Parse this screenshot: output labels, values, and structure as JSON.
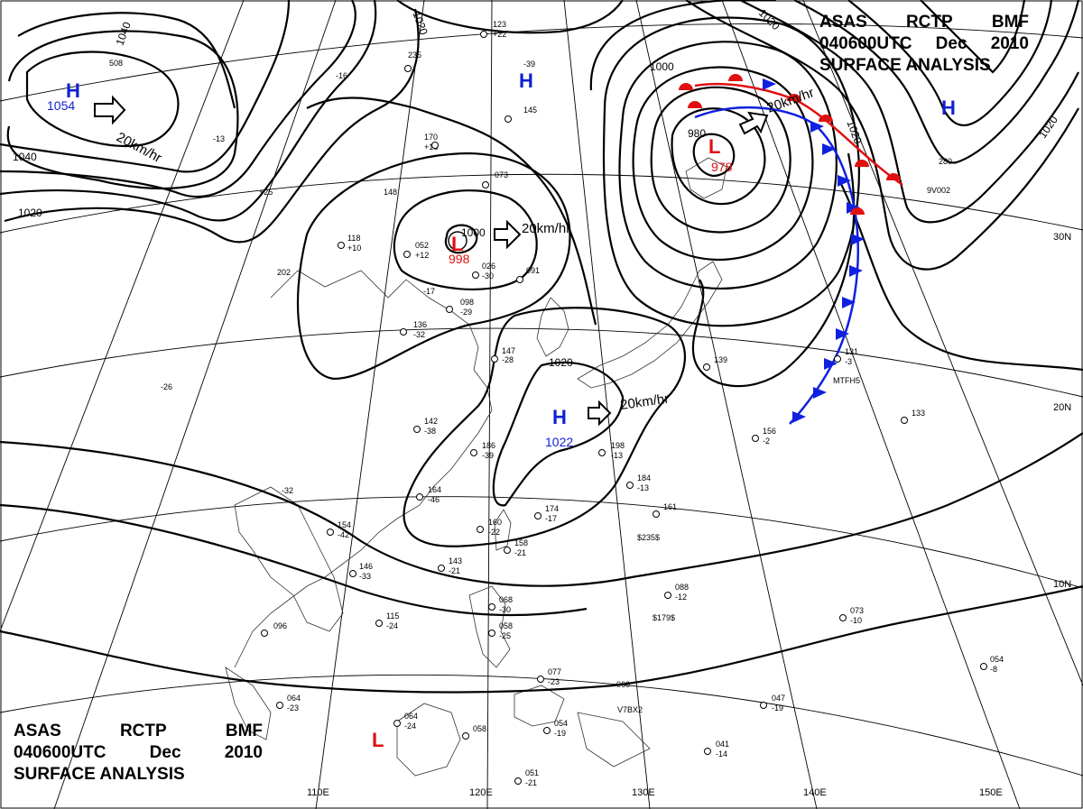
{
  "header": {
    "line1": [
      "ASAS",
      "RCTP",
      "BMF"
    ],
    "line2": [
      "040600UTC",
      "Dec",
      "2010"
    ],
    "line3": "SURFACE  ANALYSIS"
  },
  "isobar_labels": {
    "nw_1040a": "1040",
    "nw_1040b": "1040",
    "nw_1020": "1020",
    "n_1020": "1020",
    "ne_1020a": "1020",
    "ne_1020b": "1020",
    "ne_1020c": "1020",
    "low1_1000": "1000",
    "low2_1000": "1000",
    "low2_980": "980",
    "tw_1020": "1020"
  },
  "pressure_centers": [
    {
      "symbol": "H",
      "value": "1054",
      "color": "#1020d0"
    },
    {
      "symbol": "H",
      "value": "",
      "color": "#1020d0"
    },
    {
      "symbol": "H",
      "value": "",
      "color": "#1020d0"
    },
    {
      "symbol": "L",
      "value": "998",
      "color": "#e01010"
    },
    {
      "symbol": "L",
      "value": "978",
      "color": "#e01010"
    },
    {
      "symbol": "H",
      "value": "1022",
      "color": "#1020d0"
    },
    {
      "symbol": "L",
      "value": "",
      "color": "#e01010"
    }
  ],
  "motion_labels": {
    "nw_high": "20km/hr",
    "low_central": "20km/hr",
    "low_ne": "20km/hr",
    "high_tw": "20km/hr"
  },
  "latitude_labels": [
    "30N",
    "20N",
    "10N"
  ],
  "longitude_labels": [
    "110E",
    "120E",
    "130E",
    "140E",
    "150E"
  ],
  "station_numbers": {
    "s1": "123",
    "s2": "+22",
    "s3": "235",
    "s4": "145",
    "s5": "170",
    "s6": "+16",
    "s7": "073",
    "s8": "052",
    "s9": "+12",
    "s10": "026",
    "s11": "-30",
    "s12": "091",
    "s13": "118",
    "s14": "+10",
    "s15": "098",
    "s16": "-29",
    "s17": "136",
    "s18": "-32",
    "s19": "147",
    "s20": "-28",
    "s21": "142",
    "s22": "-38",
    "s23": "186",
    "s24": "-39",
    "s25": "164",
    "s26": "-46",
    "s27": "198",
    "s28": "-13",
    "s29": "184",
    "s30": "-13",
    "s31": "174",
    "s32": "-17",
    "s33": "161",
    "s34": "$235$",
    "s35": "160",
    "s36": "-22",
    "s37": "158",
    "s38": "-21",
    "s39": "143",
    "s40": "-21",
    "s41": "154",
    "s42": "-42",
    "s43": "146",
    "s44": "-33",
    "s45": "115",
    "s46": "-24",
    "s47": "096",
    "s48": "068",
    "s49": "-30",
    "s50": "058",
    "s51": "-25",
    "s52": "077",
    "s53": "-23",
    "s54": "088",
    "s55": "-12",
    "s56": "$179$",
    "s57": "073",
    "s58": "-10",
    "s59": "054",
    "s60": "-8",
    "s61": "064",
    "s62": "-23",
    "s63": "064",
    "s64": "-24",
    "s65": "058",
    "s66": "054",
    "s67": "-19",
    "s68": "047",
    "s69": "-19",
    "s70": "041",
    "s71": "-14",
    "s72": "051",
    "s73": "-21",
    "s74": "131",
    "s75": "-3",
    "s76": "MTFH5",
    "s77": "156",
    "s78": "-2",
    "s79": "133",
    "s80": "139",
    "s81": "280",
    "s82": "9V002",
    "s83": "V7BX2",
    "s84": "060",
    "s85": "-39",
    "s86": "-26",
    "s87": "-32",
    "s88": "202",
    "s89": "-17",
    "s90": "-16",
    "s91": "508",
    "s92": "-13",
    "s93": "+25",
    "s94": "148"
  },
  "colors": {
    "cold_front": "#1020e0",
    "warm_front": "#e01010",
    "high": "#1020d0",
    "low": "#e01010",
    "isobar": "#000000",
    "grid": "#000000"
  }
}
